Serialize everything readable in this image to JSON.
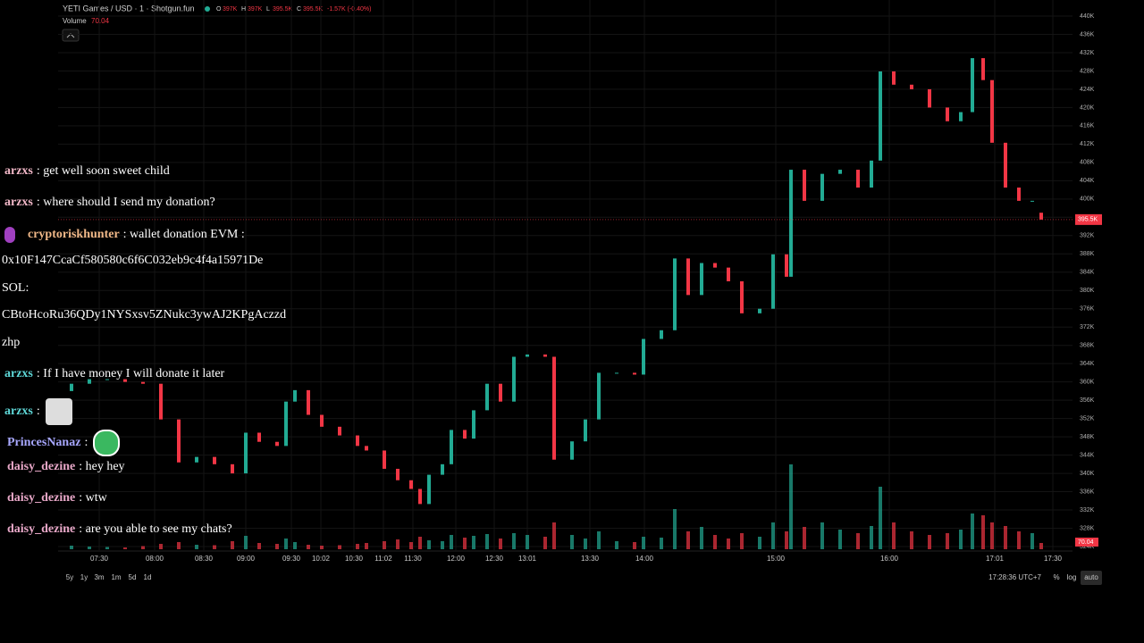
{
  "header": {
    "symbol": "YETI Games / USD · 1 · Shotgun.fun",
    "ohlc": [
      {
        "label": "O",
        "value": "397K"
      },
      {
        "label": "H",
        "value": "397K"
      },
      {
        "label": "L",
        "value": "395.5K"
      },
      {
        "label": "C",
        "value": "395.5K"
      }
    ],
    "change": "-1.57K (-0.40%)",
    "volume_label": "Volume",
    "volume_value": "70.04"
  },
  "chart_data": {
    "type": "candlestick",
    "open": [
      358000,
      359600,
      360600,
      360600,
      360000,
      359600,
      351800,
      342400,
      343600,
      342000,
      340000,
      348900,
      346900,
      346000,
      355700,
      358200,
      352800,
      350200,
      348300,
      346000,
      345000,
      341000,
      338500,
      336600,
      333300,
      339700,
      342000,
      349500,
      347600,
      353800,
      359600,
      355700,
      365500,
      366000,
      365500,
      343000,
      347000,
      351800,
      362000,
      362000,
      361600,
      369400,
      371300,
      387000,
      379000,
      386000,
      385000,
      382000,
      375000,
      376000,
      387900,
      383000,
      406400,
      399600,
      405500,
      406400,
      402500,
      408400,
      427900,
      425000,
      424000,
      420000,
      417000,
      419000,
      430800,
      426000,
      412300,
      402500,
      399600,
      397000
    ],
    "close": [
      359600,
      360600,
      360600,
      360000,
      359600,
      351800,
      342400,
      343600,
      342000,
      340000,
      348900,
      346900,
      346000,
      355700,
      358200,
      352800,
      350200,
      348300,
      346000,
      345000,
      341000,
      338500,
      336600,
      333300,
      339700,
      342000,
      349500,
      347600,
      353800,
      359600,
      355700,
      365500,
      366000,
      365500,
      343000,
      347000,
      351800,
      362000,
      362000,
      361600,
      369400,
      371300,
      387000,
      379000,
      386000,
      385000,
      382000,
      375000,
      376000,
      387900,
      383000,
      406400,
      399600,
      405500,
      406400,
      402500,
      408400,
      427900,
      425000,
      424000,
      420000,
      417000,
      419000,
      430800,
      426000,
      412300,
      402500,
      399600,
      399600,
      395500
    ],
    "volume": [
      40,
      30,
      25,
      20,
      35,
      60,
      80,
      50,
      45,
      90,
      150,
      70,
      60,
      120,
      80,
      50,
      40,
      45,
      60,
      70,
      90,
      110,
      80,
      140,
      100,
      90,
      160,
      130,
      150,
      170,
      120,
      180,
      160,
      140,
      300,
      160,
      120,
      200,
      90,
      80,
      140,
      130,
      450,
      200,
      250,
      160,
      120,
      180,
      140,
      300,
      200,
      950,
      250,
      300,
      220,
      180,
      260,
      700,
      300,
      200,
      160,
      180,
      220,
      400,
      380,
      300,
      260,
      200,
      180,
      70.04
    ],
    "vlim": [
      0,
      1000
    ],
    "ylim": [
      324000,
      440000
    ],
    "yticks": [
      {
        "value": 324000,
        "label": "324K"
      },
      {
        "value": 328000,
        "label": "328K"
      },
      {
        "value": 332000,
        "label": "332K"
      },
      {
        "value": 336000,
        "label": "336K"
      },
      {
        "value": 340000,
        "label": "340K"
      },
      {
        "value": 344000,
        "label": "344K"
      },
      {
        "value": 348000,
        "label": "348K"
      },
      {
        "value": 352000,
        "label": "352K"
      },
      {
        "value": 356000,
        "label": "356K"
      },
      {
        "value": 360000,
        "label": "360K"
      },
      {
        "value": 364000,
        "label": "364K"
      },
      {
        "value": 368000,
        "label": "368K"
      },
      {
        "value": 372000,
        "label": "372K"
      },
      {
        "value": 376000,
        "label": "376K"
      },
      {
        "value": 380000,
        "label": "380K"
      },
      {
        "value": 384000,
        "label": "384K"
      },
      {
        "value": 388000,
        "label": "388K"
      },
      {
        "value": 392000,
        "label": "392K"
      },
      {
        "value": 396000,
        "label": "396K"
      },
      {
        "value": 400000,
        "label": "400K"
      },
      {
        "value": 404000,
        "label": "404K"
      },
      {
        "value": 408000,
        "label": "408K"
      },
      {
        "value": 412000,
        "label": "412K"
      },
      {
        "value": 416000,
        "label": "416K"
      },
      {
        "value": 420000,
        "label": "420K"
      },
      {
        "value": 424000,
        "label": "424K"
      },
      {
        "value": 428000,
        "label": "428K"
      },
      {
        "value": 432000,
        "label": "432K"
      },
      {
        "value": 436000,
        "label": "436K"
      },
      {
        "value": 440000,
        "label": "440K"
      }
    ],
    "time_labels": [
      "07:30",
      "08:00",
      "08:30",
      "09:00",
      "09:30",
      "10:02",
      "10:30",
      "11:02",
      "11:30",
      "12:00",
      "12:30",
      "13:01",
      "13:30",
      "14:00",
      "15:00",
      "16:00",
      "17:01",
      "17:30"
    ],
    "grid": true,
    "colors": {
      "up": "#22ab94",
      "down": "#f23645"
    }
  },
  "toolbar": {
    "ranges": [
      "5y",
      "1y",
      "3m",
      "1m",
      "5d",
      "1d"
    ],
    "clock": "17:28:36 UTC+7",
    "options": [
      "%",
      "log",
      "auto"
    ]
  },
  "chat": [
    {
      "user": "arzxs",
      "color": "#f2b8c8",
      "text": ": get well soon sweet child"
    },
    {
      "user": "arzxs",
      "color": "#f2b8c8",
      "text": ": where should I send my donation?"
    },
    {
      "user": "cryptoriskhunter",
      "color": "#f0b888",
      "text": ": wallet donation EVM :",
      "lines": [
        "0x10F147CcaCf580580c6f6C032eb9c4f4a15971De",
        "SOL:",
        "CBtoHcoRu36QDy1NYSxsv5ZNukc3ywAJ2KPgAczzd",
        "zhp"
      ]
    },
    {
      "user": "arzxs",
      "color": "#5fd8d8",
      "text": ": If I have money I will donate it later"
    },
    {
      "user": "arzxs",
      "color": "#5fd8d8",
      "text": ":"
    },
    {
      "user": "PrincesNanaz",
      "color": "#a8a8ff",
      "text": ":"
    },
    {
      "user": "daisy_dezine",
      "color": "#e8a8c8",
      "text": ": hey hey"
    },
    {
      "user": "daisy_dezine",
      "color": "#e8a8c8",
      "text": ": wtw"
    },
    {
      "user": "daisy_dezine",
      "color": "#e8a8c8",
      "text": ": are you able to see my chats?"
    }
  ]
}
